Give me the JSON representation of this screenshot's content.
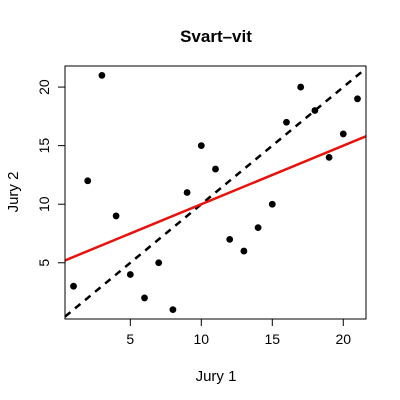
{
  "chart_data": {
    "type": "scatter",
    "title": "Svart–vit",
    "xlabel": "Jury 1",
    "ylabel": "Jury 2",
    "xlim": [
      0.4,
      21.6
    ],
    "ylim": [
      0.2,
      21.8
    ],
    "xticks": [
      "5",
      "10",
      "15",
      "20"
    ],
    "yticks": [
      "5",
      "10",
      "15",
      "20"
    ],
    "grid": false,
    "points": [
      {
        "x": 1,
        "y": 3
      },
      {
        "x": 2,
        "y": 12
      },
      {
        "x": 3,
        "y": 21
      },
      {
        "x": 4,
        "y": 9
      },
      {
        "x": 5,
        "y": 4
      },
      {
        "x": 6,
        "y": 2
      },
      {
        "x": 7,
        "y": 5
      },
      {
        "x": 8,
        "y": 1
      },
      {
        "x": 9,
        "y": 11
      },
      {
        "x": 10,
        "y": 15
      },
      {
        "x": 11,
        "y": 13
      },
      {
        "x": 12,
        "y": 7
      },
      {
        "x": 13,
        "y": 6
      },
      {
        "x": 14,
        "y": 8
      },
      {
        "x": 15,
        "y": 10
      },
      {
        "x": 16,
        "y": 17
      },
      {
        "x": 17,
        "y": 20
      },
      {
        "x": 18,
        "y": 18
      },
      {
        "x": 19,
        "y": 14
      },
      {
        "x": 20,
        "y": 16
      },
      {
        "x": 21,
        "y": 19
      }
    ],
    "lines": [
      {
        "style": "dashed",
        "color": "#000000",
        "intercept": 0,
        "slope": 1
      },
      {
        "style": "solid",
        "color": "#e8120c",
        "intercept": 5,
        "slope": 0.5
      }
    ]
  }
}
